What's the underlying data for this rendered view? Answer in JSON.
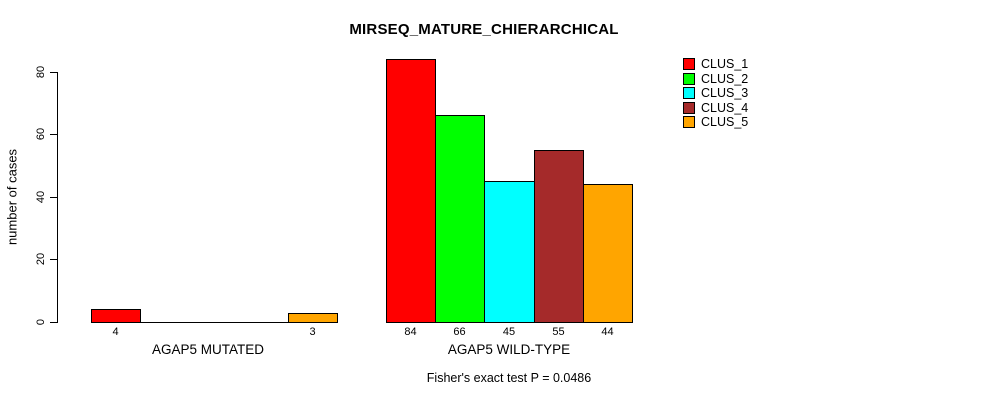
{
  "chart_data": {
    "type": "bar",
    "title": "MIRSEQ_MATURE_CHIERARCHICAL",
    "ylabel": "number of cases",
    "xlabel": "",
    "yticks": [
      0,
      20,
      40,
      60,
      80
    ],
    "ylim": [
      0,
      84
    ],
    "grid": false,
    "legend_position": "top-right",
    "annotation": "Fisher's exact test P = 0.0486",
    "series_names": [
      "CLUS_1",
      "CLUS_2",
      "CLUS_3",
      "CLUS_4",
      "CLUS_5"
    ],
    "series_colors": [
      "#FF0000",
      "#00FF00",
      "#00FFFF",
      "#A52A2A",
      "#FFA500"
    ],
    "categories": [
      "AGAP5 MUTATED",
      "AGAP5 WILD-TYPE"
    ],
    "groups": [
      {
        "label": "AGAP5 MUTATED",
        "values": [
          4,
          0,
          0,
          0,
          3
        ],
        "value_labels": [
          "4",
          "",
          "",
          "",
          "3"
        ]
      },
      {
        "label": "AGAP5 WILD-TYPE",
        "values": [
          84,
          66,
          45,
          55,
          44
        ],
        "value_labels": [
          "84",
          "66",
          "45",
          "55",
          "44"
        ]
      }
    ]
  },
  "legend": {
    "items": [
      {
        "label": "CLUS_1",
        "color": "#FF0000"
      },
      {
        "label": "CLUS_2",
        "color": "#00FF00"
      },
      {
        "label": "CLUS_3",
        "color": "#00FFFF"
      },
      {
        "label": "CLUS_4",
        "color": "#A52A2A"
      },
      {
        "label": "CLUS_5",
        "color": "#FFA500"
      }
    ]
  }
}
